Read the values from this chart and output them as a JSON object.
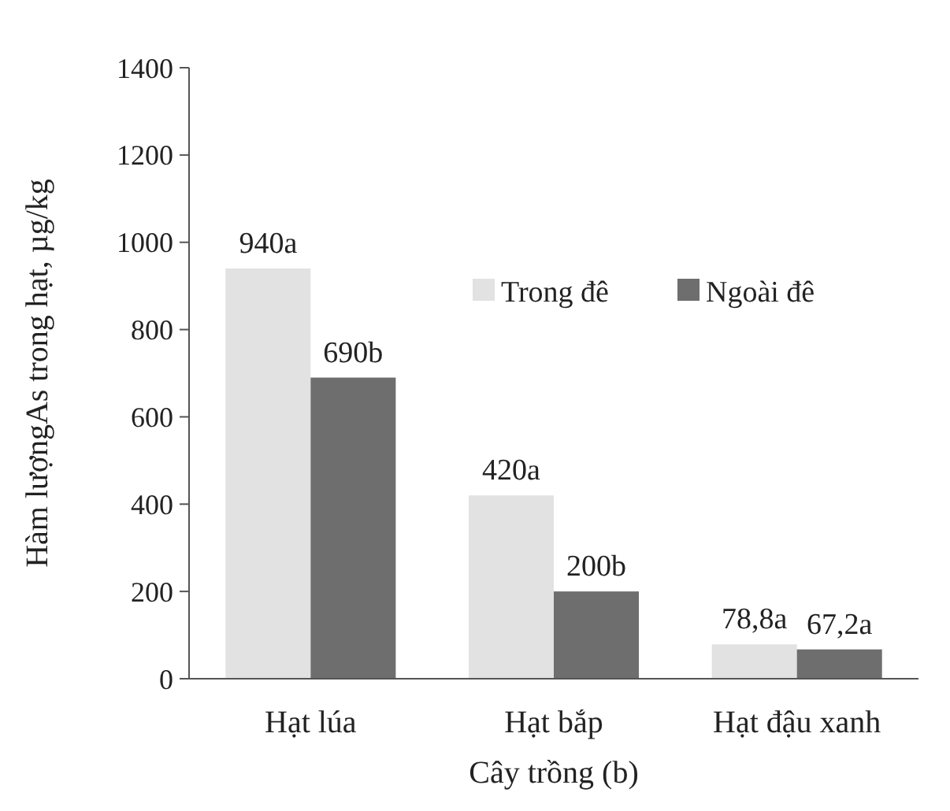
{
  "chart_data": {
    "type": "bar",
    "xlabel": "Cây trồng (b)",
    "ylabel": "Hàm lượngAs trong hạt, µg/kg",
    "categories": [
      "Hạt lúa",
      "Hạt bắp",
      "Hạt đậu xanh"
    ],
    "series": [
      {
        "name": "Trong đê",
        "color": "#e2e2e2",
        "values": [
          940,
          420,
          78.8
        ],
        "value_labels": [
          "940a",
          "420a",
          "78,8a"
        ]
      },
      {
        "name": "Ngoài đê",
        "color": "#6e6e6e",
        "values": [
          690,
          200,
          67.2
        ],
        "value_labels": [
          "690b",
          "200b",
          "67,2a"
        ]
      }
    ],
    "ylim": [
      0,
      1400
    ],
    "yticks": [
      0,
      200,
      400,
      600,
      800,
      1000,
      1200,
      1400
    ],
    "grid": false,
    "legend": "right"
  }
}
